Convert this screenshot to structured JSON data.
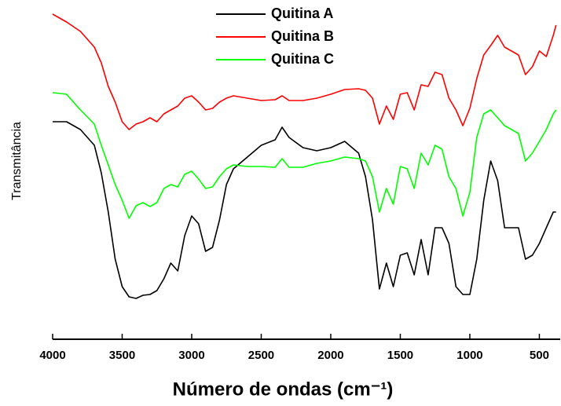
{
  "chart_data": {
    "type": "line",
    "xlabel": "Número de ondas (cm⁻¹)",
    "ylabel": "Transmitância",
    "x": [
      4000,
      3900,
      3800,
      3700,
      3650,
      3600,
      3550,
      3500,
      3450,
      3400,
      3350,
      3300,
      3250,
      3200,
      3150,
      3100,
      3050,
      3000,
      2950,
      2900,
      2850,
      2800,
      2750,
      2700,
      2600,
      2500,
      2400,
      2350,
      2300,
      2200,
      2100,
      2000,
      1900,
      1800,
      1750,
      1700,
      1650,
      1600,
      1550,
      1500,
      1450,
      1400,
      1350,
      1300,
      1250,
      1200,
      1150,
      1100,
      1050,
      1000,
      950,
      900,
      850,
      800,
      750,
      700,
      650,
      600,
      550,
      500,
      450,
      400,
      380
    ],
    "series": [
      {
        "name": "Quitina A",
        "color": "#000000",
        "values": [
          277,
          277,
          267,
          247,
          212,
          162,
          102,
          67,
          54,
          52,
          56,
          57,
          62,
          77,
          97,
          87,
          132,
          157,
          147,
          112,
          117,
          152,
          197,
          217,
          232,
          247,
          254,
          270,
          257,
          244,
          240,
          244,
          252,
          237,
          207,
          152,
          64,
          97,
          67,
          107,
          110,
          82,
          127,
          82,
          142,
          142,
          122,
          67,
          57,
          57,
          102,
          177,
          227,
          202,
          142,
          142,
          142,
          102,
          107,
          122,
          142,
          162,
          162
        ]
      },
      {
        "name": "Quitina B",
        "color": "#ff0000",
        "values": [
          414,
          404,
          392,
          372,
          352,
          322,
          302,
          277,
          267,
          274,
          277,
          282,
          277,
          287,
          292,
          297,
          307,
          310,
          302,
          292,
          294,
          302,
          307,
          310,
          307,
          304,
          305,
          310,
          304,
          304,
          307,
          312,
          318,
          319,
          317,
          307,
          274,
          297,
          280,
          312,
          314,
          292,
          324,
          322,
          340,
          337,
          307,
          292,
          272,
          294,
          332,
          362,
          374,
          387,
          372,
          367,
          362,
          337,
          347,
          367,
          360,
          387,
          400
        ]
      },
      {
        "name": "Quitina C",
        "color": "#00ff00",
        "values": [
          314,
          312,
          292,
          274,
          247,
          222,
          197,
          177,
          154,
          170,
          174,
          169,
          174,
          192,
          197,
          194,
          210,
          214,
          204,
          192,
          194,
          207,
          217,
          222,
          220,
          220,
          219,
          230,
          219,
          219,
          224,
          227,
          232,
          230,
          227,
          207,
          162,
          192,
          172,
          220,
          217,
          192,
          237,
          222,
          247,
          242,
          207,
          192,
          157,
          187,
          257,
          287,
          292,
          282,
          272,
          267,
          262,
          227,
          237,
          252,
          267,
          287,
          292
        ]
      }
    ],
    "xlim": [
      4000,
      350
    ],
    "xticks": [
      4000,
      3500,
      3000,
      2500,
      2000,
      1500,
      1000,
      500
    ],
    "ylim": [
      0,
      432
    ],
    "legend": "top"
  }
}
